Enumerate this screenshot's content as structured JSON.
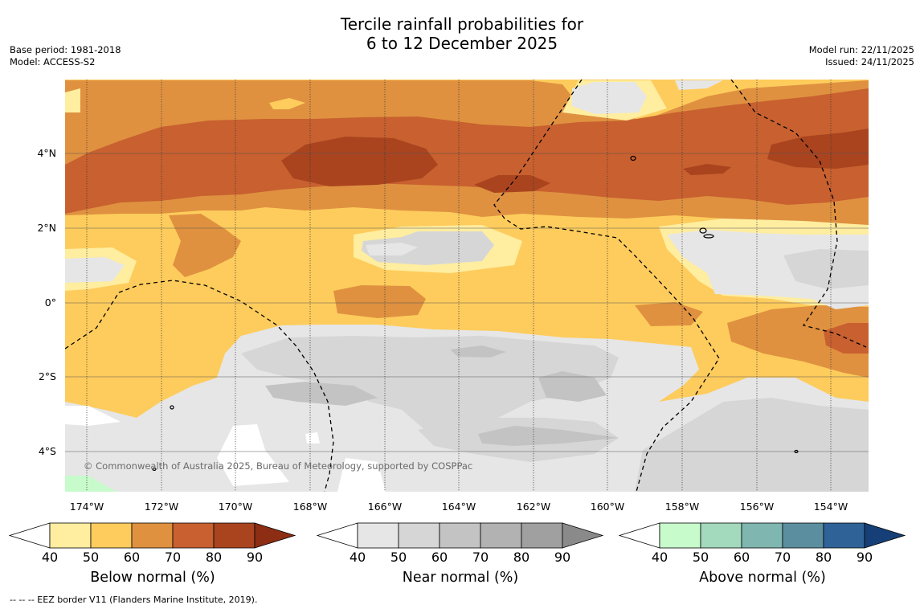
{
  "title": {
    "line1": "Tercile rainfall probabilities for",
    "line2": "6 to 12 December 2025"
  },
  "meta_left": {
    "base_period": "Base period: 1981-2018",
    "model": "Model: ACCESS-S2"
  },
  "meta_right": {
    "model_run": "Model run: 22/11/2025",
    "issued": "Issued: 24/11/2025"
  },
  "map": {
    "x_ticks": [
      "174°W",
      "172°W",
      "170°W",
      "168°W",
      "166°W",
      "164°W",
      "162°W",
      "160°W",
      "158°W",
      "156°W",
      "154°W"
    ],
    "y_ticks": [
      "4°N",
      "2°N",
      "0°",
      "2°S",
      "4°S"
    ],
    "copyright": "© Commonwealth of Australia 2025, Bureau of Meteorology, supported by COSPPac"
  },
  "colorbars": [
    {
      "name": "below",
      "title": "Below normal (%)",
      "labels": [
        "40",
        "50",
        "60",
        "70",
        "80",
        "90"
      ],
      "colors": [
        "#ffeda0",
        "#fecc5c",
        "#df9140",
        "#c8602f",
        "#a9441f",
        "#8c2d14"
      ]
    },
    {
      "name": "near",
      "title": "Near normal (%)",
      "labels": [
        "40",
        "50",
        "60",
        "70",
        "80",
        "90"
      ],
      "colors": [
        "#e6e6e6",
        "#d6d6d6",
        "#c3c3c3",
        "#b2b2b2",
        "#a0a0a0",
        "#8a8a8a"
      ]
    },
    {
      "name": "above",
      "title": "Above normal (%)",
      "labels": [
        "40",
        "50",
        "60",
        "70",
        "80",
        "90"
      ],
      "colors": [
        "#c8fbcc",
        "#a3d9bd",
        "#7fb6b0",
        "#5b8fa0",
        "#2f6398",
        "#163f78"
      ]
    }
  ],
  "footer": "--  --  -- EEZ border V11 (Flanders Marine Institute, 2019)."
}
